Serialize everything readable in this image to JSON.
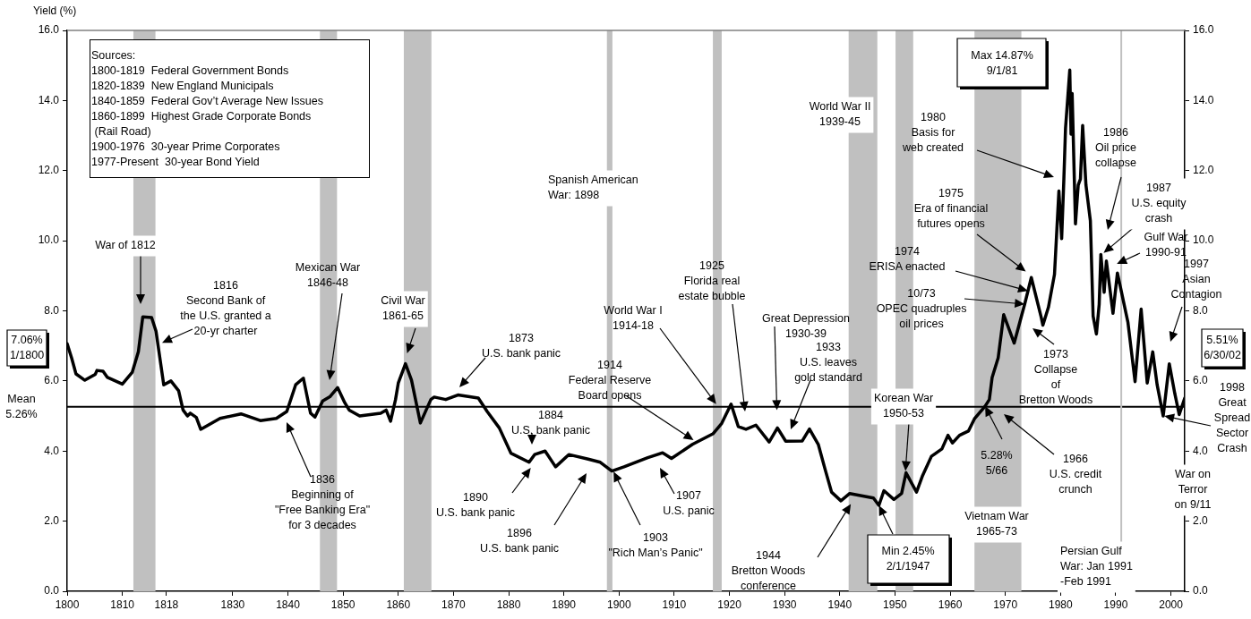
{
  "chart_data": {
    "type": "line",
    "ylabel": "Yield (%)",
    "x": [
      1800,
      1800.8,
      1801.6,
      1803.2,
      1805.1,
      1805.4,
      1806.5,
      1807.3,
      1810.0,
      1811.8,
      1812.9,
      1813.7,
      1815.3,
      1816.1,
      1817.5,
      1818.8,
      1820.2,
      1821.0,
      1821.8,
      1822.3,
      1823.4,
      1824.2,
      1827.7,
      1831.5,
      1835.0,
      1837.9,
      1839.8,
      1841.4,
      1842.8,
      1844.1,
      1844.9,
      1846.3,
      1847.6,
      1849.0,
      1850.3,
      1851.1,
      1853.0,
      1856.8,
      1857.8,
      1858.6,
      1859.5,
      1860.0,
      1861.3,
      1862.4,
      1864.0,
      1865.9,
      1866.5,
      1868.6,
      1870.8,
      1874.5,
      1876.1,
      1878.3,
      1880.4,
      1883.7,
      1884.7,
      1886.6,
      1888.5,
      1890.9,
      1894.4,
      1896.6,
      1898.7,
      1900.9,
      1905.2,
      1907.9,
      1909.5,
      1913.3,
      1917.0,
      1918.6,
      1920.3,
      1921.6,
      1923.0,
      1924.8,
      1927.2,
      1928.7,
      1930.2,
      1933.2,
      1934.5,
      1936.1,
      1937.3,
      1938.5,
      1940.2,
      1941.8,
      1946.1,
      1947.08,
      1948.0,
      1949.8,
      1951.2,
      1952.0,
      1953.9,
      1955.0,
      1956.6,
      1958.5,
      1959.6,
      1960.4,
      1961.7,
      1963.3,
      1964.4,
      1966.33,
      1967.1,
      1967.6,
      1968.7,
      1969.7,
      1971.6,
      1973.5,
      1974.7,
      1976.5,
      1976.8,
      1977.8,
      1978.9,
      1979.7,
      1980.2,
      1980.6,
      1980.9,
      1981.67,
      1981.9,
      1982.1,
      1982.7,
      1983.2,
      1983.6,
      1984.0,
      1984.6,
      1985.4,
      1985.9,
      1986.5,
      1987.0,
      1987.3,
      1987.9,
      1988.3,
      1989.5,
      1990.3,
      1992.2,
      1993.5,
      1994.6,
      1995.7,
      1996.7,
      1997.5,
      1998.6,
      1999.7,
      2000.7,
      2001.5,
      2002.5
    ],
    "series": [
      {
        "color": "#000000",
        "values": [
          7.06,
          6.66,
          6.2,
          6.02,
          6.19,
          6.3,
          6.28,
          6.1,
          5.91,
          6.25,
          6.83,
          7.83,
          7.81,
          7.42,
          5.89,
          6.0,
          5.72,
          5.17,
          5.0,
          5.08,
          4.96,
          4.62,
          4.93,
          5.06,
          4.87,
          4.93,
          5.13,
          5.89,
          6.08,
          5.08,
          4.97,
          5.43,
          5.55,
          5.81,
          5.38,
          5.17,
          5.0,
          5.08,
          5.17,
          4.85,
          5.47,
          5.94,
          6.49,
          6.02,
          4.8,
          5.47,
          5.54,
          5.47,
          5.6,
          5.51,
          5.13,
          4.66,
          3.94,
          3.68,
          3.9,
          4.0,
          3.55,
          3.9,
          3.77,
          3.68,
          3.43,
          3.55,
          3.81,
          3.95,
          3.79,
          4.19,
          4.49,
          4.79,
          5.34,
          4.7,
          4.62,
          4.74,
          4.26,
          4.66,
          4.28,
          4.29,
          4.63,
          4.19,
          3.5,
          2.83,
          2.58,
          2.79,
          2.66,
          2.45,
          2.87,
          2.62,
          2.79,
          3.38,
          2.83,
          3.3,
          3.85,
          4.06,
          4.45,
          4.23,
          4.45,
          4.57,
          4.92,
          5.28,
          5.47,
          6.1,
          6.66,
          7.89,
          7.08,
          8.19,
          8.95,
          7.81,
          7.59,
          8.1,
          9.04,
          11.42,
          10.06,
          11.76,
          13.21,
          14.87,
          13.04,
          14.2,
          10.48,
          11.59,
          11.76,
          13.29,
          11.59,
          10.57,
          7.85,
          7.34,
          8.19,
          9.61,
          8.53,
          9.42,
          7.93,
          9.08,
          7.68,
          5.98,
          8.05,
          5.94,
          6.83,
          5.89,
          5.0,
          6.49,
          5.64,
          5.04,
          5.51
        ]
      }
    ],
    "xlim": [
      1800,
      2002.5
    ],
    "xticks": [
      1800,
      1810,
      1818,
      1830,
      1840,
      1850,
      1860,
      1870,
      1880,
      1890,
      1900,
      1910,
      1920,
      1930,
      1940,
      1950,
      1960,
      1970,
      1980,
      1990,
      2000
    ],
    "ylim": [
      0,
      16
    ],
    "yticks": [
      {
        "value": 0,
        "label": "0.0"
      },
      {
        "value": 2,
        "label": "2.0"
      },
      {
        "value": 4,
        "label": "4.0"
      },
      {
        "value": 6,
        "label": "6.0"
      },
      {
        "value": 8,
        "label": "8.0"
      },
      {
        "value": 10,
        "label": "10.0"
      },
      {
        "value": 12,
        "label": "12.0"
      },
      {
        "value": 14,
        "label": "14.0"
      },
      {
        "value": 16,
        "label": "16.0"
      }
    ],
    "y2lim": [
      0,
      16
    ],
    "y2ticks": [
      {
        "value": 0,
        "label": "0.0"
      },
      {
        "value": 2,
        "label": "2.0"
      },
      {
        "value": 4,
        "label": "4.0"
      },
      {
        "value": 6,
        "label": "6.0"
      },
      {
        "value": 8,
        "label": "8.0"
      },
      {
        "value": 10,
        "label": "10.0"
      },
      {
        "value": 12,
        "label": "12.0"
      },
      {
        "value": 14,
        "label": "14.0"
      },
      {
        "value": 16,
        "label": "16.0"
      }
    ],
    "ref_lines": [
      {
        "axis": "y",
        "value": 5.26,
        "label": "Mean\n5.26%",
        "color": "#000000"
      },
      {
        "axis": "x",
        "value": 1991,
        "label": "Persian Gulf\nWar: Jan 1991\n-Feb 1991",
        "color": "#c0c0c0"
      }
    ],
    "bands": [
      {
        "axis": "x",
        "from": 1812,
        "to": 1816,
        "color": "#c0c0c0"
      },
      {
        "axis": "x",
        "from": 1845.8,
        "to": 1848.9,
        "color": "#c0c0c0"
      },
      {
        "axis": "x",
        "from": 1861,
        "to": 1866,
        "color": "#c0c0c0"
      },
      {
        "axis": "x",
        "from": 1897.8,
        "to": 1898.8,
        "label": "Spanish American\nWar: 1898",
        "color": "#c0c0c0"
      },
      {
        "axis": "x",
        "from": 1917,
        "to": 1918.6,
        "color": "#c0c0c0"
      },
      {
        "axis": "x",
        "from": 1941.6,
        "to": 1946.8,
        "label": "World War II\n1939-45",
        "color": "#c0c0c0"
      },
      {
        "axis": "x",
        "from": 1950.1,
        "to": 1953.3,
        "color": "#c0c0c0"
      },
      {
        "axis": "x",
        "from": 1964.4,
        "to": 1972.9,
        "label": "Vietnam War\n1965-73",
        "color": "#c0c0c0"
      }
    ],
    "annotations": [
      "Sources:\n1800-1819  Federal Government Bonds\n1820-1839  New England Municipals\n1840-1859  Federal Gov’t Average New Issues\n1860-1899  Highest Grade Corporate Bonds\n (Rail Road)\n1900-1976  30-year Prime Corporates\n1977-Present  30-year Bond Yield",
      "War of 1812",
      {
        "text": "1816\nSecond Bank of\nthe U.S. granted a\n20-yr charter",
        "x": 1817.2,
        "y": 7.09
      },
      "Mexican War\n1846-48",
      {
        "text": "Civil War\n1861-65",
        "x": 1861.6,
        "y": 6.79
      },
      "1836\nBeginning of\n\"Free Banking Era\"\nfor 3 decades",
      "1873\nU.S. bank panic",
      {
        "text": "1914\nFederal Reserve\nBoard opens",
        "x": 1913.5,
        "y": 4.31
      },
      "1884\nU.S. bank panic",
      {
        "text": "1890\nU.S. bank panic",
        "x": 1884.0,
        "y": 3.52
      },
      "1896\nU.S. bank panic",
      {
        "text": "1903\n\"Rich Man’s Panic\"",
        "x": 1899.0,
        "y": 3.41
      },
      "1907\nU.S. panic",
      {
        "text": "World War I\n1914-18",
        "x": 1917.6,
        "y": 5.34
      },
      "1925\nFlorida real\nestate bubble",
      {
        "text": "Great Depression\n1930-39",
        "x": 1928.6,
        "y": 5.17
      },
      "1933\nU.S. leaves\ngold standard",
      {
        "text": "1944\nBretton Woods\nconference",
        "x": 1942.0,
        "y": 2.49
      },
      {
        "text": "Min 2.45%\n2/1/1947",
        "x": 1947.08,
        "y": 2.45
      },
      {
        "text": "Korean War\n1950-53",
        "x": 1951.9,
        "y": 3.43
      },
      {
        "text": "5.28%\n5/66",
        "x": 1966.33,
        "y": 5.28
      },
      "1966\nU.S. credit\ncrunch",
      {
        "text": "10/73\nOPEC quadruples\noil prices",
        "x": 1973.5,
        "y": 8.19
      },
      {
        "text": "1974\nERISA enacted",
        "x": 1974.1,
        "y": 8.57
      },
      {
        "text": "1975\nEra of financial\nfutures opens",
        "x": 1973.7,
        "y": 9.12
      },
      "1973\nCollapse\nof\nBretton Woods",
      "1980\nBasis for\nweb created",
      "Max 14.87%\n9/1/81",
      "1986\nOil price\ncollapse",
      {
        "text": "1987\nU.S. equity\ncrash",
        "x": 1987.8,
        "y": 9.65
      },
      {
        "text": "Gulf War\n1990-91",
        "x": 1990.2,
        "y": 9.34
      },
      "1997\nAsian\nContagion",
      "5.51%\n6/30/02",
      {
        "text": "1998\nGreat\nSpread\nSector\nCrash",
        "x": 1998.8,
        "y": 5.0
      },
      "War on\nTerror\non 9/11",
      {
        "text": "7.06%\n1/1800",
        "x": 1800,
        "y": 7.06
      }
    ]
  }
}
